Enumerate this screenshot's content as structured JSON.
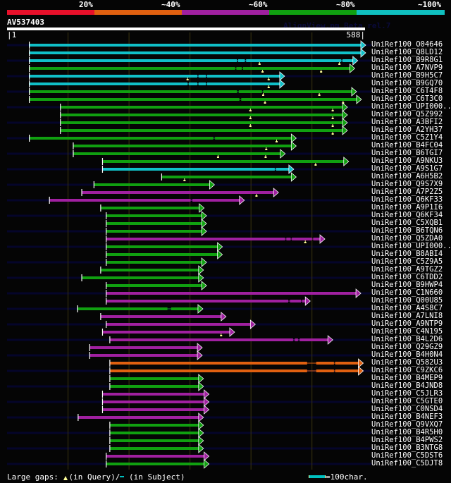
{
  "legend": {
    "items": [
      {
        "label": "20%",
        "color": "#e8102a"
      },
      {
        "label": "~40%",
        "color": "#e06010"
      },
      {
        "label": "~60%",
        "color": "#a020a0"
      },
      {
        "label": "~80%",
        "color": "#10a010"
      },
      {
        "label": "~100%",
        "color": "#10c0c0"
      }
    ]
  },
  "query": {
    "name": "AV537403",
    "length": 588,
    "ruler_start": "1",
    "ruler_end": "588",
    "credit": "AlignView.pm Beta rel.7"
  },
  "colors": {
    "c": "#10c0c8",
    "g": "#10a010",
    "p": "#a020a0",
    "o": "#e06010",
    "insert": "#ffff99",
    "background_line": "#05052a",
    "grid": "#3a3410"
  },
  "hits": [
    {
      "name": "UniRef100_O04646",
      "color": "c",
      "start": 38,
      "end": 588,
      "gaps": [],
      "inserts": []
    },
    {
      "name": "UniRef100_Q8LD12",
      "color": "c",
      "start": 38,
      "end": 588,
      "gaps": [],
      "inserts": []
    },
    {
      "name": "UniRef100_B9R8G1",
      "color": "c",
      "start": 38,
      "end": 575,
      "gaps": [
        [
          378,
          380
        ],
        [
          391,
          393
        ],
        [
          549,
          551
        ]
      ],
      "inserts": [
        415,
        546
      ]
    },
    {
      "name": "UniRef100_A7NVP9",
      "color": "c",
      "start": 38,
      "end": 570,
      "gaps": [
        [
          375,
          377
        ],
        [
          386,
          388
        ]
      ],
      "inserts": [
        420,
        516
      ],
      "color_override": "g"
    },
    {
      "name": "UniRef100_B9H5C7",
      "color": "c",
      "start": 38,
      "end": 455,
      "gaps": [
        [
          313,
          315
        ],
        [
          327,
          329
        ]
      ],
      "inserts": [
        297,
        430
      ]
    },
    {
      "name": "UniRef100_B9GQ70",
      "color": "c",
      "start": 38,
      "end": 455,
      "gaps": [
        [
          297,
          299
        ],
        [
          313,
          315
        ],
        [
          327,
          329
        ]
      ],
      "inserts": [
        430
      ]
    },
    {
      "name": "UniRef100_C6T4F8",
      "color": "g",
      "start": 38,
      "end": 573,
      "gaps": [
        [
          378,
          381
        ],
        [
          419,
          421
        ]
      ],
      "inserts": [
        421,
        513
      ]
    },
    {
      "name": "UniRef100_C6T3C0",
      "color": "g",
      "start": 38,
      "end": 581,
      "gaps": [
        [
          382,
          385
        ]
      ],
      "inserts": [
        424,
        552
      ]
    },
    {
      "name": "UniRef100_UPI000..",
      "color": "g",
      "start": 89,
      "end": 558,
      "gaps": [],
      "inserts": [
        400,
        535
      ]
    },
    {
      "name": "UniRef100_Q5Z992",
      "color": "g",
      "start": 89,
      "end": 558,
      "gaps": [],
      "inserts": [
        400,
        535
      ]
    },
    {
      "name": "UniRef100_A3BFI2",
      "color": "g",
      "start": 89,
      "end": 558,
      "gaps": [],
      "inserts": [
        400,
        535
      ]
    },
    {
      "name": "UniRef100_A2YH37",
      "color": "g",
      "start": 89,
      "end": 558,
      "gaps": [],
      "inserts": [
        535
      ]
    },
    {
      "name": "UniRef100_C5Z1Y4",
      "color": "g",
      "start": 38,
      "end": 474,
      "gaps": [
        [
          339,
          342
        ]
      ],
      "inserts": [
        443
      ]
    },
    {
      "name": "UniRef100_B4FC04",
      "color": "g",
      "start": 110,
      "end": 474,
      "gaps": [],
      "inserts": [
        426
      ]
    },
    {
      "name": "UniRef100_B6TGI7",
      "color": "g",
      "start": 110,
      "end": 456,
      "gaps": [],
      "inserts": [
        347,
        425
      ]
    },
    {
      "name": "UniRef100_A9NKU3",
      "color": "g",
      "start": 158,
      "end": 560,
      "gaps": [],
      "inserts": [
        507
      ]
    },
    {
      "name": "UniRef100_A9S1G7",
      "color": "c",
      "start": 158,
      "end": 470,
      "gaps": [
        [
          440,
          442
        ]
      ],
      "inserts": []
    },
    {
      "name": "UniRef100_A6H5B2",
      "color": "g",
      "start": 255,
      "end": 474,
      "gaps": [],
      "inserts": [
        292
      ]
    },
    {
      "name": "UniRef100_Q9S7X9",
      "color": "g",
      "start": 144,
      "end": 340,
      "gaps": [],
      "inserts": []
    },
    {
      "name": "UniRef100_A7P2Z5",
      "color": "p",
      "start": 124,
      "end": 445,
      "gaps": [],
      "inserts": [
        410
      ]
    },
    {
      "name": "UniRef100_Q6KF33",
      "color": "p",
      "start": 71,
      "end": 389,
      "gaps": [
        [
          302,
          305
        ]
      ],
      "inserts": []
    },
    {
      "name": "UniRef100_A9P1I6",
      "color": "g",
      "start": 155,
      "end": 323,
      "gaps": [],
      "inserts": []
    },
    {
      "name": "UniRef100_Q6KF34",
      "color": "g",
      "start": 164,
      "end": 327,
      "gaps": [],
      "inserts": []
    },
    {
      "name": "UniRef100_C5XQB1",
      "color": "g",
      "start": 164,
      "end": 327,
      "gaps": [],
      "inserts": []
    },
    {
      "name": "UniRef100_B6TQN6",
      "color": "g",
      "start": 164,
      "end": 327,
      "gaps": [],
      "inserts": []
    },
    {
      "name": "UniRef100_Q5ZDA0",
      "color": "p",
      "start": 164,
      "end": 521,
      "gaps": [
        [
          457,
          459
        ],
        [
          466,
          468
        ],
        [
          501,
          503
        ]
      ],
      "inserts": [
        490
      ]
    },
    {
      "name": "UniRef100_UPI000..",
      "color": "g",
      "start": 164,
      "end": 353,
      "gaps": [],
      "inserts": []
    },
    {
      "name": "UniRef100_B8ABI4",
      "color": "g",
      "start": 164,
      "end": 353,
      "gaps": [],
      "inserts": []
    },
    {
      "name": "UniRef100_C5Z9A5",
      "color": "g",
      "start": 164,
      "end": 327,
      "gaps": [],
      "inserts": []
    },
    {
      "name": "UniRef100_A9TGZ2",
      "color": "g",
      "start": 155,
      "end": 322,
      "gaps": [],
      "inserts": []
    },
    {
      "name": "UniRef100_C6TDD2",
      "color": "g",
      "start": 124,
      "end": 322,
      "gaps": [],
      "inserts": []
    },
    {
      "name": "UniRef100_B9HWP4",
      "color": "g",
      "start": 164,
      "end": 327,
      "gaps": [],
      "inserts": []
    },
    {
      "name": "UniRef100_C1N660",
      "color": "p",
      "start": 164,
      "end": 580,
      "gaps": [],
      "inserts": []
    },
    {
      "name": "UniRef100_Q00U85",
      "color": "p",
      "start": 164,
      "end": 497,
      "gaps": [
        [
          462,
          465
        ],
        [
          483,
          485
        ]
      ],
      "inserts": []
    },
    {
      "name": "UniRef100_A4S8C7",
      "color": "g",
      "start": 117,
      "end": 321,
      "gaps": [
        [
          264,
          270
        ]
      ],
      "inserts": []
    },
    {
      "name": "UniRef100_A7LNI8",
      "color": "p",
      "start": 155,
      "end": 359,
      "gaps": [],
      "inserts": []
    },
    {
      "name": "UniRef100_A9NTP9",
      "color": "p",
      "start": 164,
      "end": 407,
      "gaps": [],
      "inserts": []
    },
    {
      "name": "UniRef100_C4N195",
      "color": "p",
      "start": 158,
      "end": 373,
      "gaps": [],
      "inserts": [
        352
      ]
    },
    {
      "name": "UniRef100_B4L2D6",
      "color": "p",
      "start": 170,
      "end": 534,
      "gaps": [
        [
          470,
          473
        ],
        [
          478,
          481
        ]
      ],
      "inserts": []
    },
    {
      "name": "UniRef100_Q29GZ9",
      "color": "p",
      "start": 137,
      "end": 320,
      "gaps": [],
      "inserts": []
    },
    {
      "name": "UniRef100_B4H0N4",
      "color": "p",
      "start": 137,
      "end": 320,
      "gaps": [],
      "inserts": []
    },
    {
      "name": "UniRef100_Q582U3",
      "color": "o",
      "start": 170,
      "end": 584,
      "gaps": [
        [
          493,
          508
        ],
        [
          537,
          539
        ]
      ],
      "inserts": []
    },
    {
      "name": "UniRef100_C9ZKC6",
      "color": "o",
      "start": 170,
      "end": 584,
      "gaps": [
        [
          493,
          508
        ],
        [
          537,
          539
        ]
      ],
      "inserts": []
    },
    {
      "name": "UniRef100_B4MEP9",
      "color": "g",
      "start": 170,
      "end": 322,
      "gaps": [],
      "inserts": []
    },
    {
      "name": "UniRef100_B4JND8",
      "color": "g",
      "start": 170,
      "end": 322,
      "gaps": [],
      "inserts": []
    },
    {
      "name": "UniRef100_C5JLR3",
      "color": "p",
      "start": 158,
      "end": 331,
      "gaps": [],
      "inserts": []
    },
    {
      "name": "UniRef100_C5GTE0",
      "color": "p",
      "start": 158,
      "end": 331,
      "gaps": [],
      "inserts": []
    },
    {
      "name": "UniRef100_C0NSD4",
      "color": "p",
      "start": 158,
      "end": 331,
      "gaps": [],
      "inserts": []
    },
    {
      "name": "UniRef100_B4NEF3",
      "color": "p",
      "start": 118,
      "end": 322,
      "gaps": [],
      "inserts": []
    },
    {
      "name": "UniRef100_Q9VXQ7",
      "color": "g",
      "start": 170,
      "end": 322,
      "gaps": [],
      "inserts": []
    },
    {
      "name": "UniRef100_B4R5H0",
      "color": "g",
      "start": 170,
      "end": 322,
      "gaps": [],
      "inserts": []
    },
    {
      "name": "UniRef100_B4PWS2",
      "color": "g",
      "start": 170,
      "end": 322,
      "gaps": [],
      "inserts": []
    },
    {
      "name": "UniRef100_B3NTG8",
      "color": "g",
      "start": 170,
      "end": 322,
      "gaps": [],
      "inserts": []
    },
    {
      "name": "UniRef100_C5DST6",
      "color": "p",
      "start": 164,
      "end": 331,
      "gaps": [],
      "inserts": []
    },
    {
      "name": "UniRef100_C5DJT8",
      "color": "g",
      "start": 164,
      "end": 331,
      "gaps": [],
      "inserts": []
    }
  ],
  "footer": {
    "gaps_label": "Large gaps:",
    "in_query": "(in Query)/",
    "in_subject": "(in Subject)",
    "scale_label": "=100char."
  }
}
